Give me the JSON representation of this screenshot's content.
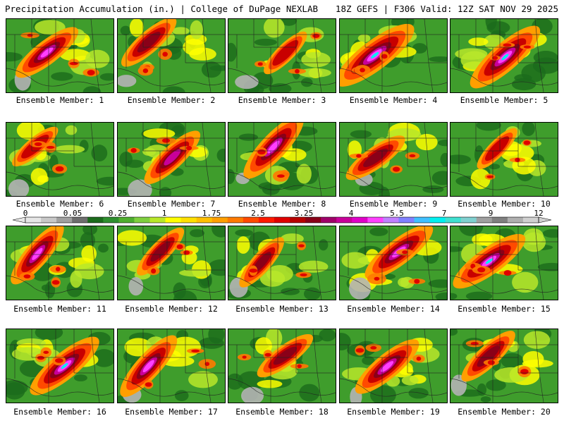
{
  "header": {
    "left": "Precipitation Accumulation (in.) | College of DuPage NEXLAB",
    "right": "18Z GEFS | F306 Valid: 12Z SAT NOV 29 2025"
  },
  "colorbar": {
    "tick_labels": [
      "0",
      "0.05",
      "0.25",
      "1",
      "1.75",
      "2.5",
      "3.25",
      "4",
      "5.5",
      "7",
      "9",
      "12"
    ],
    "colors": [
      "#e6e6e6",
      "#c8c8c8",
      "#a0a0a0",
      "#6e6e6e",
      "#1c6b1c",
      "#2f8f2f",
      "#4fae2f",
      "#7fcf3f",
      "#b8e82a",
      "#ffff00",
      "#ffe000",
      "#ffbf00",
      "#ff9f00",
      "#ff7a00",
      "#ff4a00",
      "#ff1a00",
      "#e00000",
      "#b80000",
      "#8a0018",
      "#a0006a",
      "#c8009a",
      "#e000c8",
      "#ff40ff",
      "#c080ff",
      "#8080ff",
      "#40c0ff",
      "#00f0f0",
      "#40e0d0",
      "#80d0d0",
      "#a0a0a0",
      "#808080",
      "#b0b0b0",
      "#d0d0d0"
    ]
  },
  "members": [
    {
      "label": "Ensemble Member: 1",
      "intensity": 0.55
    },
    {
      "label": "Ensemble Member: 2",
      "intensity": 0.45
    },
    {
      "label": "Ensemble Member: 3",
      "intensity": 0.25
    },
    {
      "label": "Ensemble Member: 4",
      "intensity": 0.85
    },
    {
      "label": "Ensemble Member: 5",
      "intensity": 0.75
    },
    {
      "label": "Ensemble Member: 6",
      "intensity": 0.25
    },
    {
      "label": "Ensemble Member: 7",
      "intensity": 0.5
    },
    {
      "label": "Ensemble Member: 8",
      "intensity": 0.65
    },
    {
      "label": "Ensemble Member: 9",
      "intensity": 0.45
    },
    {
      "label": "Ensemble Member: 10",
      "intensity": 0.2
    },
    {
      "label": "Ensemble Member: 11",
      "intensity": 0.55
    },
    {
      "label": "Ensemble Member: 12",
      "intensity": 0.35
    },
    {
      "label": "Ensemble Member: 13",
      "intensity": 0.35
    },
    {
      "label": "Ensemble Member: 14",
      "intensity": 0.65
    },
    {
      "label": "Ensemble Member: 15",
      "intensity": 0.7
    },
    {
      "label": "Ensemble Member: 16",
      "intensity": 0.7
    },
    {
      "label": "Ensemble Member: 17",
      "intensity": 0.6
    },
    {
      "label": "Ensemble Member: 18",
      "intensity": 0.4
    },
    {
      "label": "Ensemble Member: 19",
      "intensity": 0.6
    },
    {
      "label": "Ensemble Member: 20",
      "intensity": 0.45
    }
  ]
}
